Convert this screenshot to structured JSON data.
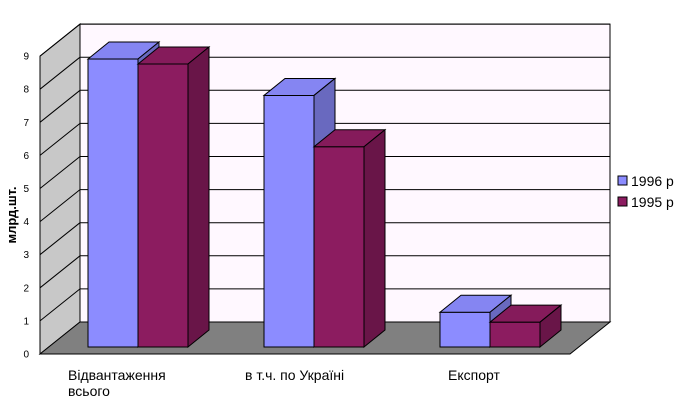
{
  "chart_data": {
    "type": "bar",
    "categories": [
      "Відвантаження всього",
      "в т.ч. по Україні",
      "Експорт"
    ],
    "category_lines": [
      [
        "Відвантаження",
        "всього"
      ],
      [
        "в т.ч. по Україні"
      ],
      [
        "Експорт"
      ]
    ],
    "series": [
      {
        "name": "1996 р",
        "values": [
          8.7,
          7.6,
          1.05
        ],
        "color": "#8c8cff"
      },
      {
        "name": "1995 р",
        "values": [
          8.55,
          6.05,
          0.75
        ],
        "color": "#8c1c60"
      }
    ],
    "title": "",
    "xlabel": "",
    "ylabel": "млрд.шт.",
    "ylim": [
      0,
      9
    ],
    "yticks": [
      0,
      1,
      2,
      3,
      4,
      5,
      6,
      7,
      8,
      9
    ],
    "grid": true,
    "legend_position": "right",
    "colors": {
      "back_wall": "#fff8ff",
      "side_wall": "#c8c8c8",
      "floor": "#808080"
    }
  }
}
